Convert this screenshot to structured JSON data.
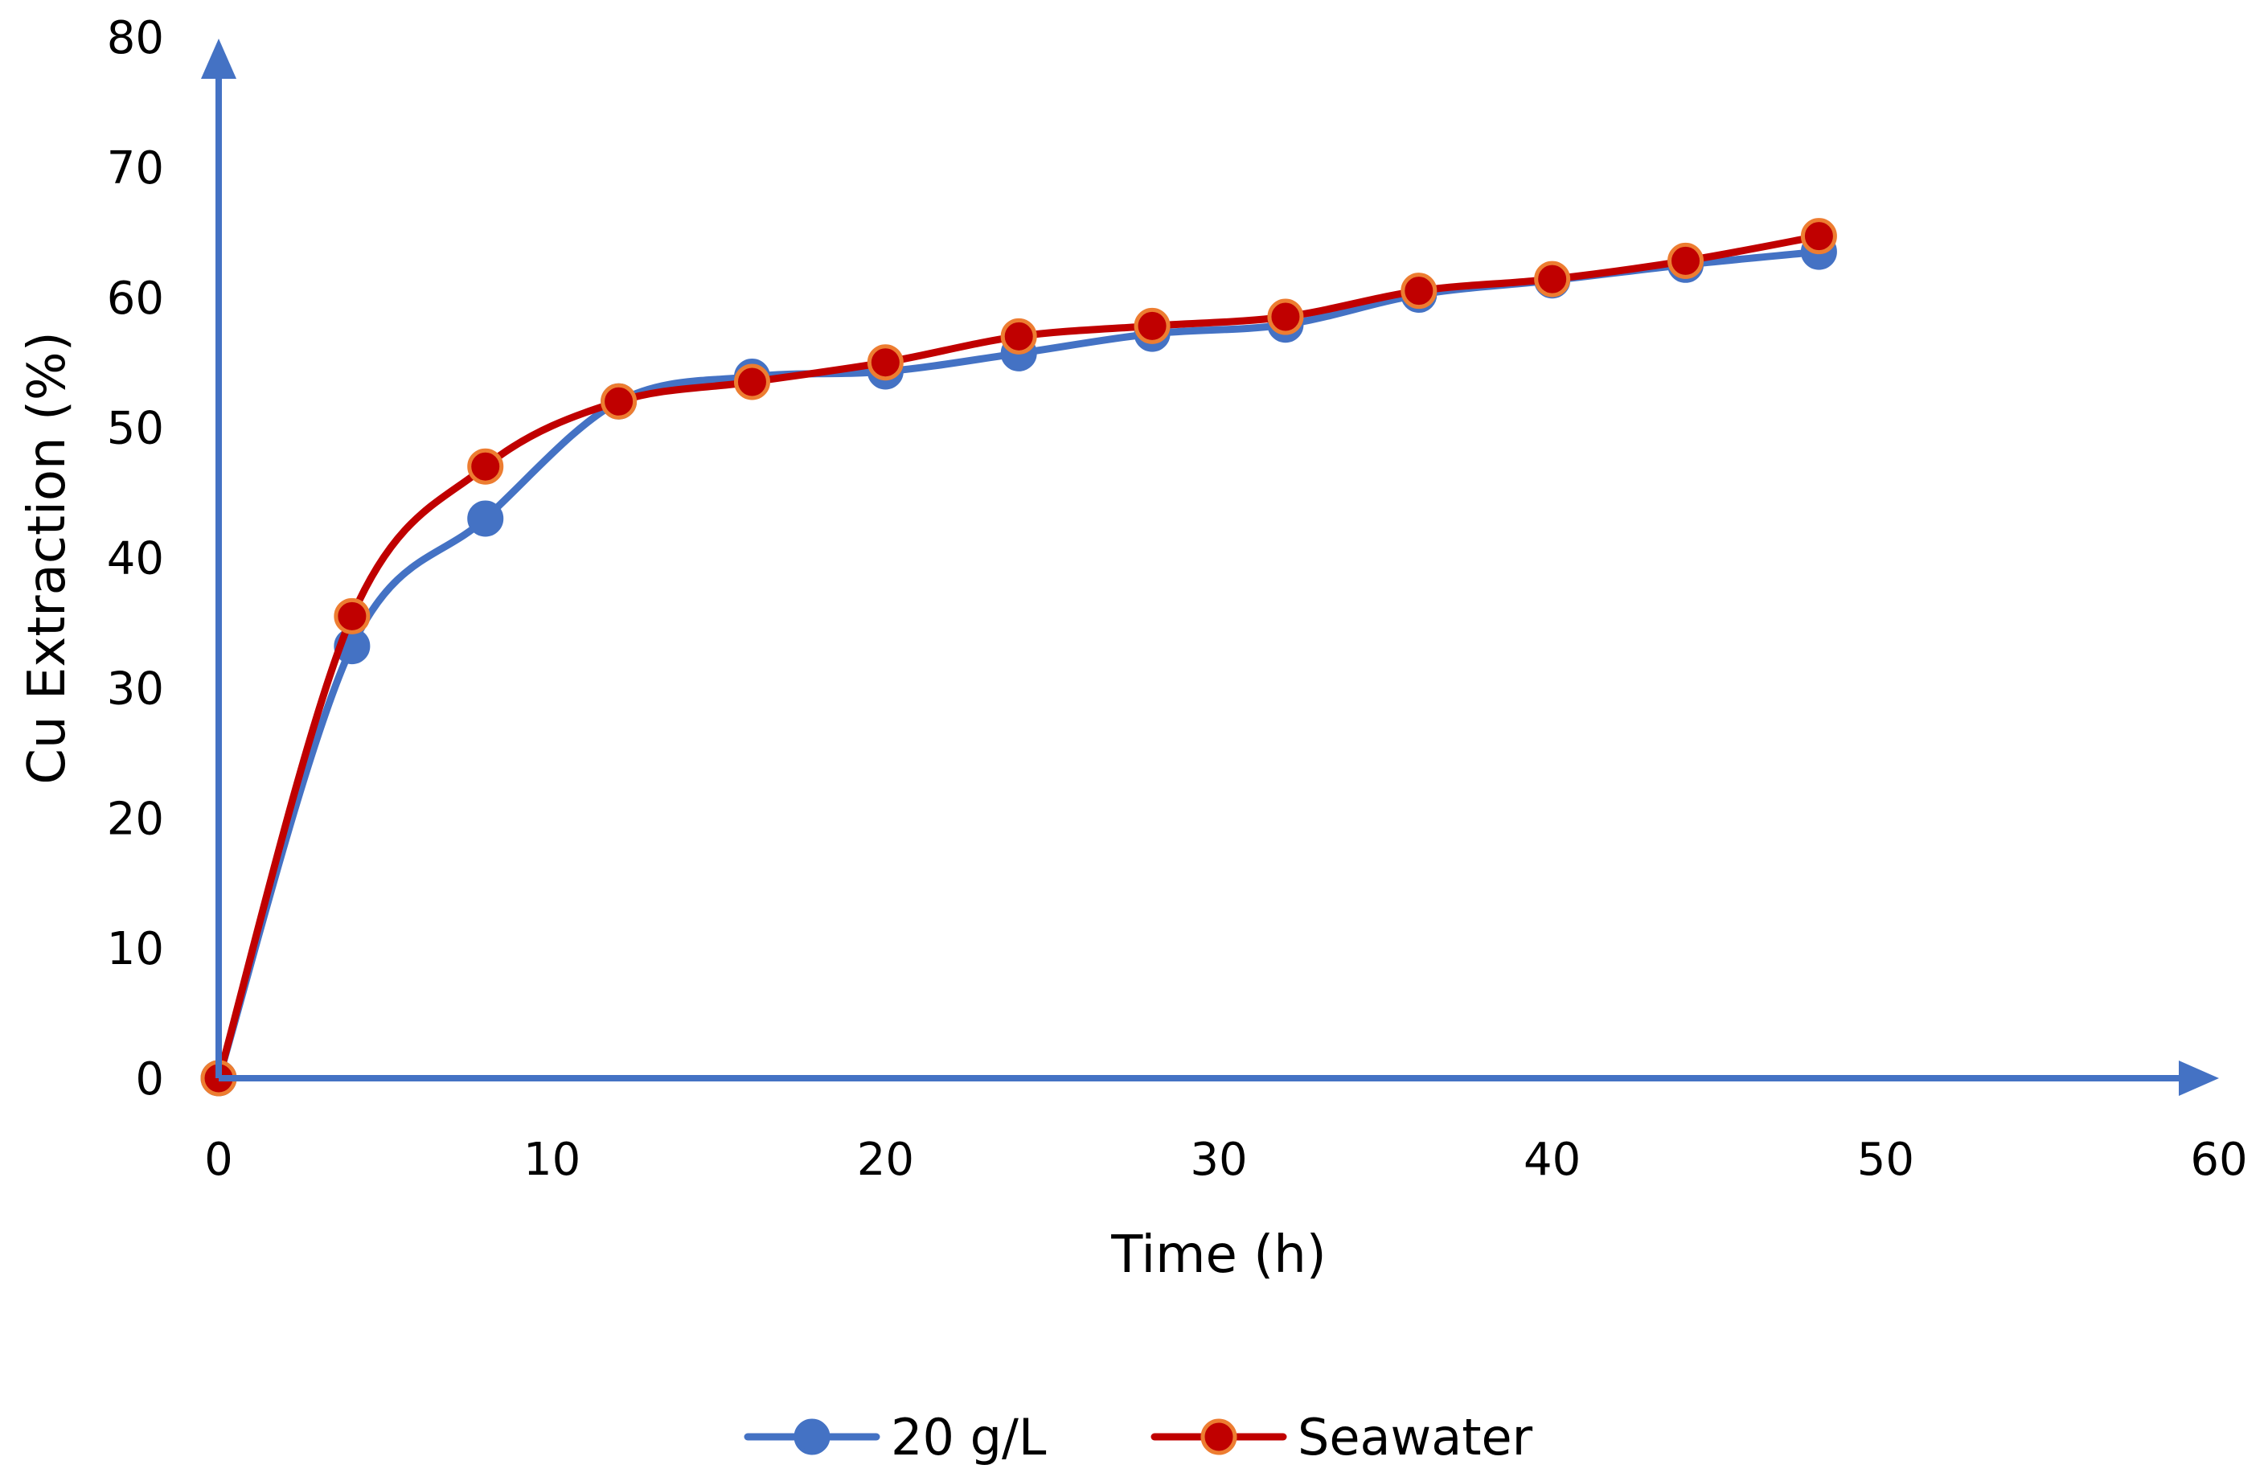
{
  "chart_data": {
    "type": "line",
    "title": "",
    "xlabel": "Time (h)",
    "ylabel": "Cu Extraction (%)",
    "xlim": [
      0,
      60
    ],
    "ylim": [
      0,
      80
    ],
    "xticks": [
      0,
      10,
      20,
      30,
      40,
      50,
      60
    ],
    "yticks": [
      0,
      10,
      20,
      30,
      40,
      50,
      60,
      70,
      80
    ],
    "grid": false,
    "legend_position": "bottom",
    "smooth": true,
    "axis_color": "#4472C4",
    "series": [
      {
        "name": "20 g/L",
        "line_color": "#4472C4",
        "marker_fill": "#4472C4",
        "marker_stroke": "#4472C4",
        "x": [
          0,
          4,
          8,
          12,
          16,
          20,
          24,
          28,
          32,
          36,
          40,
          44,
          48
        ],
        "y": [
          0,
          33.2,
          43.0,
          52.0,
          53.9,
          54.3,
          55.7,
          57.2,
          57.9,
          60.2,
          61.3,
          62.5,
          63.5
        ]
      },
      {
        "name": "Seawater",
        "line_color": "#C00000",
        "marker_fill": "#C00000",
        "marker_stroke": "#ED7D31",
        "x": [
          0,
          4,
          8,
          12,
          16,
          20,
          24,
          28,
          32,
          36,
          40,
          44,
          48
        ],
        "y": [
          0,
          35.5,
          47.0,
          52.0,
          53.5,
          55.0,
          57.0,
          57.8,
          58.5,
          60.5,
          61.4,
          62.8,
          64.7
        ]
      }
    ]
  }
}
